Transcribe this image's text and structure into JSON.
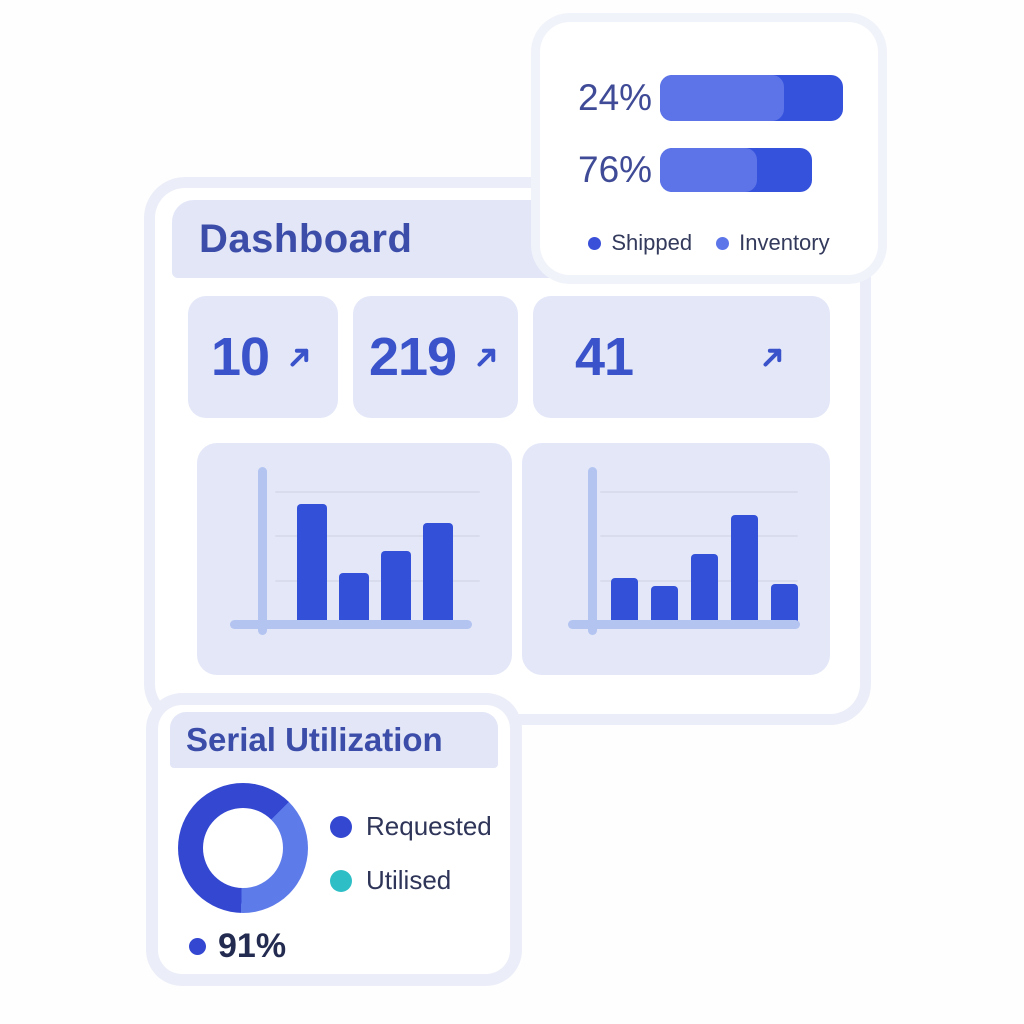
{
  "shipping_card": {
    "rows": [
      {
        "label": "24%"
      },
      {
        "label": "76%"
      }
    ],
    "legend": [
      {
        "label": "Shipped",
        "color": "#3A50D9"
      },
      {
        "label": "Inventory",
        "color": "#5C76E9"
      }
    ]
  },
  "dashboard": {
    "title": "Dashboard",
    "stats": [
      {
        "value": "10",
        "trend": "up"
      },
      {
        "value": "219",
        "trend": "up"
      },
      {
        "value": "41",
        "trend": "up"
      }
    ]
  },
  "serial_card": {
    "title": "Serial Utilization",
    "legend": [
      {
        "label": "Requested",
        "color": "#3347D1"
      },
      {
        "label": "Utilised",
        "color": "#2EBFC6"
      }
    ],
    "footer": {
      "value": "91%",
      "dot_color": "#3347D1"
    }
  },
  "colors": {
    "accent_blue": "#3A52CA",
    "bar_blue": "#3350D8",
    "light_blue": "#5C76E9",
    "teal": "#2EBFC6",
    "band_lavender": "#E2E6F7",
    "tile_lavender": "#E3E7F8",
    "halo_lavender": "#EBEEF8"
  },
  "chart_data": [
    {
      "id": "shipping-progress",
      "type": "bar",
      "orientation": "horizontal",
      "categories": [
        "24%",
        "76%"
      ],
      "bar_length_pct": [
        100,
        83
      ],
      "fill_split_pct": [
        68,
        64
      ],
      "colors": {
        "fill": "#5C74E8",
        "remainder": "#3552DC"
      },
      "legend": [
        "Shipped",
        "Inventory"
      ],
      "legend_position": "bottom",
      "note": "stylized two-tone progress bars; 24% and 76% are the only labeled values"
    },
    {
      "id": "bar-left",
      "type": "bar",
      "values": [
        76,
        32,
        46,
        64
      ],
      "ylim": [
        0,
        100
      ],
      "grid": true,
      "bar_color": "#3350D8",
      "axis_color": "#B3C4F1",
      "note": "unlabeled decorative bar chart; values estimated as % of plot height"
    },
    {
      "id": "bar-right",
      "type": "bar",
      "values": [
        29,
        24,
        44,
        69,
        25
      ],
      "ylim": [
        0,
        100
      ],
      "grid": true,
      "bar_color": "#3350D8",
      "axis_color": "#B3C4F1",
      "note": "unlabeled decorative bar chart; values estimated as % of plot height"
    },
    {
      "id": "serial-donut",
      "type": "pie",
      "donut": true,
      "start_angle_deg": 45,
      "slices": [
        {
          "name": "secondary",
          "pct": 38,
          "color": "#5E7BEA"
        },
        {
          "name": "primary",
          "pct": 62,
          "color": "#3347D1"
        }
      ],
      "legend": [
        "Requested",
        "Utilised"
      ],
      "label": "91%"
    }
  ]
}
